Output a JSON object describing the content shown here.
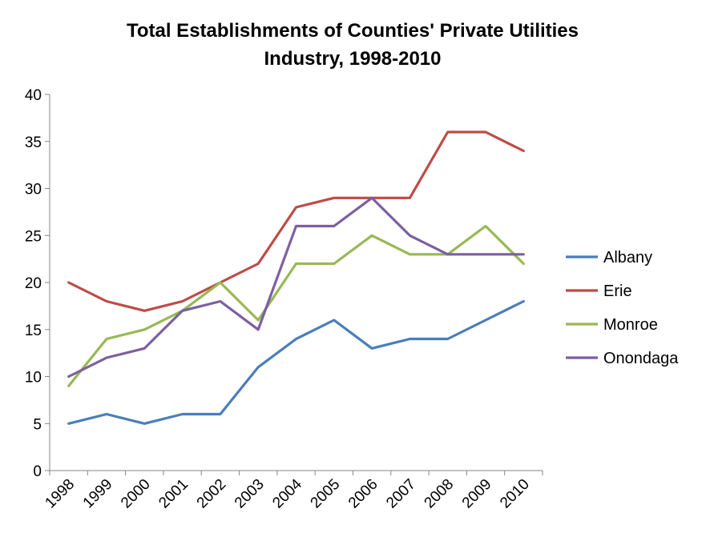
{
  "chart_data": {
    "type": "line",
    "title": "Total Establishments of Counties' Private Utilities Industry, 1998-2010",
    "title_lines": [
      "Total Establishments of Counties' Private Utilities",
      "Industry, 1998-2010"
    ],
    "xlabel": "",
    "ylabel": "",
    "categories": [
      "1998",
      "1999",
      "2000",
      "2001",
      "2002",
      "2003",
      "2004",
      "2005",
      "2006",
      "2007",
      "2008",
      "2009",
      "2010"
    ],
    "ylim": [
      0,
      40
    ],
    "yticks": [
      0,
      5,
      10,
      15,
      20,
      25,
      30,
      35,
      40
    ],
    "grid": false,
    "legend_position": "right",
    "series": [
      {
        "name": "Albany",
        "color": "#4A7EBB",
        "values": [
          5,
          6,
          5,
          6,
          6,
          11,
          14,
          16,
          13,
          14,
          14,
          16,
          18
        ]
      },
      {
        "name": "Erie",
        "color": "#BE4B48",
        "values": [
          20,
          18,
          17,
          18,
          20,
          22,
          28,
          29,
          29,
          29,
          36,
          36,
          34
        ]
      },
      {
        "name": "Monroe",
        "color": "#98B954",
        "values": [
          9,
          14,
          15,
          17,
          20,
          16,
          22,
          22,
          25,
          23,
          23,
          26,
          22
        ]
      },
      {
        "name": "Onondaga",
        "color": "#7D5FA0",
        "values": [
          10,
          12,
          13,
          17,
          18,
          15,
          26,
          26,
          29,
          25,
          23,
          23,
          23
        ]
      }
    ]
  }
}
